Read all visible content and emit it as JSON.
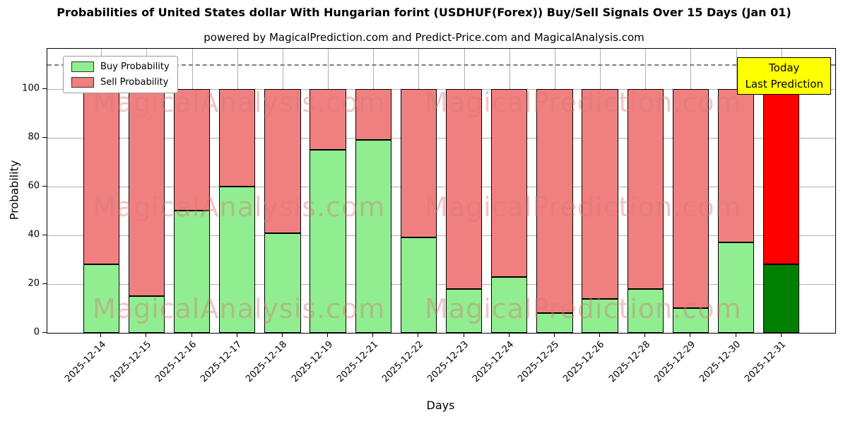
{
  "title": "Probabilities of United States dollar With Hungarian forint (USDHUF(Forex)) Buy/Sell Signals Over 15 Days (Jan 01)",
  "subtitle": "powered by MagicalPrediction.com and Predict-Price.com and MagicalAnalysis.com",
  "legend": [
    {
      "label": "Buy Probability",
      "color": "#90ee90"
    },
    {
      "label": "Sell Probability",
      "color": "#f08080"
    }
  ],
  "annotation": {
    "line1": "Today",
    "line2": "Last Prediction",
    "bg": "#ffff00"
  },
  "watermarks": {
    "texts": [
      "MagicalAnalysis.com",
      "MagicalPrediction.com"
    ]
  },
  "chart_data": {
    "type": "bar",
    "stacked": true,
    "title": "Probabilities of United States dollar With Hungarian forint (USDHUF(Forex)) Buy/Sell Signals Over 15 Days (Jan 01)",
    "xlabel": "Days",
    "ylabel": "Probability",
    "categories": [
      "2025-12-14",
      "2025-12-15",
      "2025-12-16",
      "2025-12-17",
      "2025-12-18",
      "2025-12-19",
      "2025-12-21",
      "2025-12-22",
      "2025-12-23",
      "2025-12-24",
      "2025-12-25",
      "2025-12-26",
      "2025-12-28",
      "2025-12-29",
      "2025-12-30",
      "2025-12-31"
    ],
    "series": [
      {
        "name": "Buy Probability",
        "color": "#90ee90",
        "last_color": "#008000",
        "values": [
          28,
          15,
          50,
          60,
          41,
          75,
          79,
          39,
          18,
          23,
          8,
          14,
          18,
          10,
          37,
          28
        ]
      },
      {
        "name": "Sell Probability",
        "color": "#f08080",
        "last_color": "#ff0000",
        "values": [
          72,
          85,
          50,
          40,
          59,
          25,
          21,
          61,
          82,
          77,
          92,
          86,
          82,
          90,
          63,
          72
        ]
      }
    ],
    "yticks": [
      0,
      20,
      40,
      60,
      80,
      100
    ],
    "ylim": [
      0,
      116.5
    ],
    "dashed_line_y": 110,
    "grid": true,
    "legend_position": "upper left"
  }
}
